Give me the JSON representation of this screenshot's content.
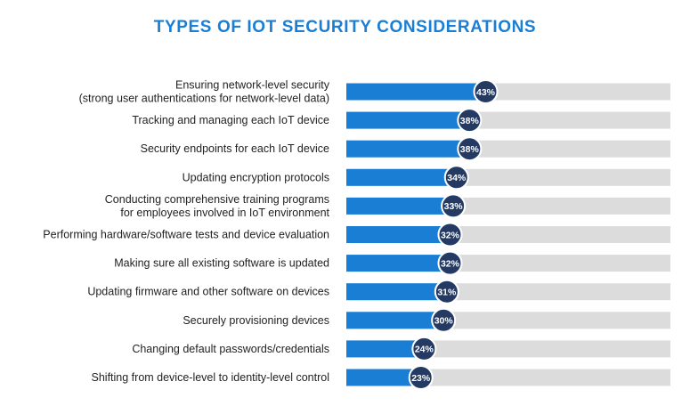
{
  "chart_data": {
    "type": "bar",
    "orientation": "horizontal",
    "title": "TYPES OF IOT SECURITY CONSIDERATIONS",
    "xlim": [
      0,
      100
    ],
    "categories": [
      [
        "Ensuring network-level security",
        "(strong user authentications for network-level data)"
      ],
      [
        "Tracking and managing each IoT device"
      ],
      [
        "Security endpoints for each IoT device"
      ],
      [
        "Updating encryption protocols"
      ],
      [
        "Conducting comprehensive training programs",
        "for employees involved in IoT environment"
      ],
      [
        "Performing hardware/software tests and device evaluation"
      ],
      [
        "Making sure all existing software is updated"
      ],
      [
        "Updating firmware and other software on devices"
      ],
      [
        "Securely provisioning devices"
      ],
      [
        "Changing default passwords/credentials"
      ],
      [
        "Shifting from device-level to identity-level control"
      ]
    ],
    "values": [
      43,
      38,
      38,
      34,
      33,
      32,
      32,
      31,
      30,
      24,
      23
    ],
    "value_labels": [
      "43%",
      "38%",
      "38%",
      "34%",
      "33%",
      "32%",
      "32%",
      "31%",
      "30%",
      "24%",
      "23%"
    ],
    "colors": {
      "fill": "#1a7fd4",
      "track": "#dcdcdc",
      "marker": "#243a63",
      "marker_border": "#ffffff",
      "title": "#1a7fd4"
    },
    "grid": false,
    "legend": "none"
  }
}
